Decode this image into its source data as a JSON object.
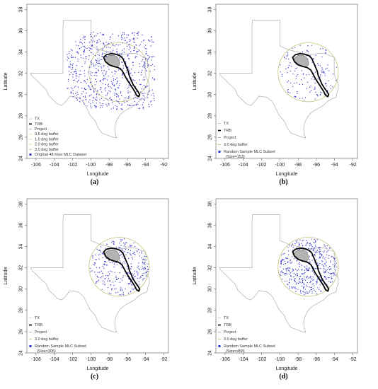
{
  "chart_data": [
    {
      "type": "scatter",
      "caption": "(a)",
      "xlabel": "Longitude",
      "ylabel": "Latitude",
      "xlim": [
        -107,
        -91.5
      ],
      "ylim": [
        24,
        38.5
      ],
      "xticks": [
        "-106",
        "-104",
        "-102",
        "-100",
        "-98",
        "-96",
        "-94",
        "-92"
      ],
      "yticks": [
        "24",
        "26",
        "28",
        "30",
        "32",
        "34",
        "36",
        "38"
      ],
      "points": 720,
      "legend": [
        {
          "label": "TX",
          "color": "#bdbdbd",
          "marker": "line"
        },
        {
          "label": "TRB",
          "color": "#000000",
          "marker": "line"
        },
        {
          "label": "Project",
          "color": "#999999",
          "marker": "line"
        },
        {
          "label": "0.5 deg buffer",
          "color": "#e6d98a",
          "marker": "line"
        },
        {
          "label": "1.0 deg buffer",
          "color": "#d6cf8e",
          "marker": "line"
        },
        {
          "label": "2.0 deg buffer",
          "color": "#c9c38a",
          "marker": "line"
        },
        {
          "label": "3.0 deg buffer",
          "color": "#b8b37a",
          "marker": "line"
        },
        {
          "label": "Original 48-hour MLC Dataset",
          "color": "#3333cc",
          "marker": "point"
        }
      ]
    },
    {
      "type": "scatter",
      "caption": "(b)",
      "xlabel": "Longitude",
      "ylabel": "Latitude",
      "xlim": [
        -107,
        -91.5
      ],
      "ylim": [
        24,
        38.5
      ],
      "xticks": [
        "-106",
        "-104",
        "-102",
        "-100",
        "-98",
        "-96",
        "-94",
        "-92"
      ],
      "yticks": [
        "24",
        "26",
        "28",
        "30",
        "32",
        "34",
        "36",
        "38"
      ],
      "points": 153,
      "legend": [
        {
          "label": "TX",
          "color": "#bdbdbd",
          "marker": "line"
        },
        {
          "label": "TRB",
          "color": "#000000",
          "marker": "line"
        },
        {
          "label": "Project",
          "color": "#999999",
          "marker": "line"
        },
        {
          "label": "3.0 deg buffer",
          "color": "#b8b37a",
          "marker": "line"
        },
        {
          "label": "Random Sample MLC Subset",
          "sublabel": "(Size=153)",
          "color": "#3333cc",
          "marker": "point"
        }
      ]
    },
    {
      "type": "scatter",
      "caption": "(c)",
      "xlabel": "Longitude",
      "ylabel": "Latitude",
      "xlim": [
        -107,
        -91.5
      ],
      "ylim": [
        24,
        38.5
      ],
      "xticks": [
        "-106",
        "-104",
        "-102",
        "-100",
        "-98",
        "-96",
        "-94",
        "-92"
      ],
      "yticks": [
        "24",
        "26",
        "28",
        "30",
        "32",
        "34",
        "36",
        "38"
      ],
      "points": 305,
      "legend": [
        {
          "label": "TX",
          "color": "#bdbdbd",
          "marker": "line"
        },
        {
          "label": "TRB",
          "color": "#000000",
          "marker": "line"
        },
        {
          "label": "Project",
          "color": "#999999",
          "marker": "line"
        },
        {
          "label": "3.0 deg buffer",
          "color": "#b8b37a",
          "marker": "line"
        },
        {
          "label": "Random Sample MLC Subset",
          "sublabel": "(Size=305)",
          "color": "#3333cc",
          "marker": "point"
        }
      ]
    },
    {
      "type": "scatter",
      "caption": "(d)",
      "xlabel": "Longitude",
      "ylabel": "Latitude",
      "xlim": [
        -107,
        -91.5
      ],
      "ylim": [
        24,
        38.5
      ],
      "xticks": [
        "-106",
        "-104",
        "-102",
        "-100",
        "-98",
        "-96",
        "-94",
        "-92"
      ],
      "yticks": [
        "24",
        "26",
        "28",
        "30",
        "32",
        "34",
        "36",
        "38"
      ],
      "points": 458,
      "legend": [
        {
          "label": "TX",
          "color": "#bdbdbd",
          "marker": "line"
        },
        {
          "label": "TRB",
          "color": "#000000",
          "marker": "line"
        },
        {
          "label": "Project",
          "color": "#999999",
          "marker": "line"
        },
        {
          "label": "3.0 deg buffer",
          "color": "#b8b37a",
          "marker": "line"
        },
        {
          "label": "Random Sample MLC Subset",
          "sublabel": "(Size=458)",
          "color": "#3333cc",
          "marker": "point"
        }
      ]
    }
  ],
  "colors": {
    "texas_outline": "#9e9e9e",
    "trb_outline": "#000000",
    "project_fill": "#b3b3b3",
    "buffer": "#c2b96b",
    "points": "#3333cc"
  }
}
